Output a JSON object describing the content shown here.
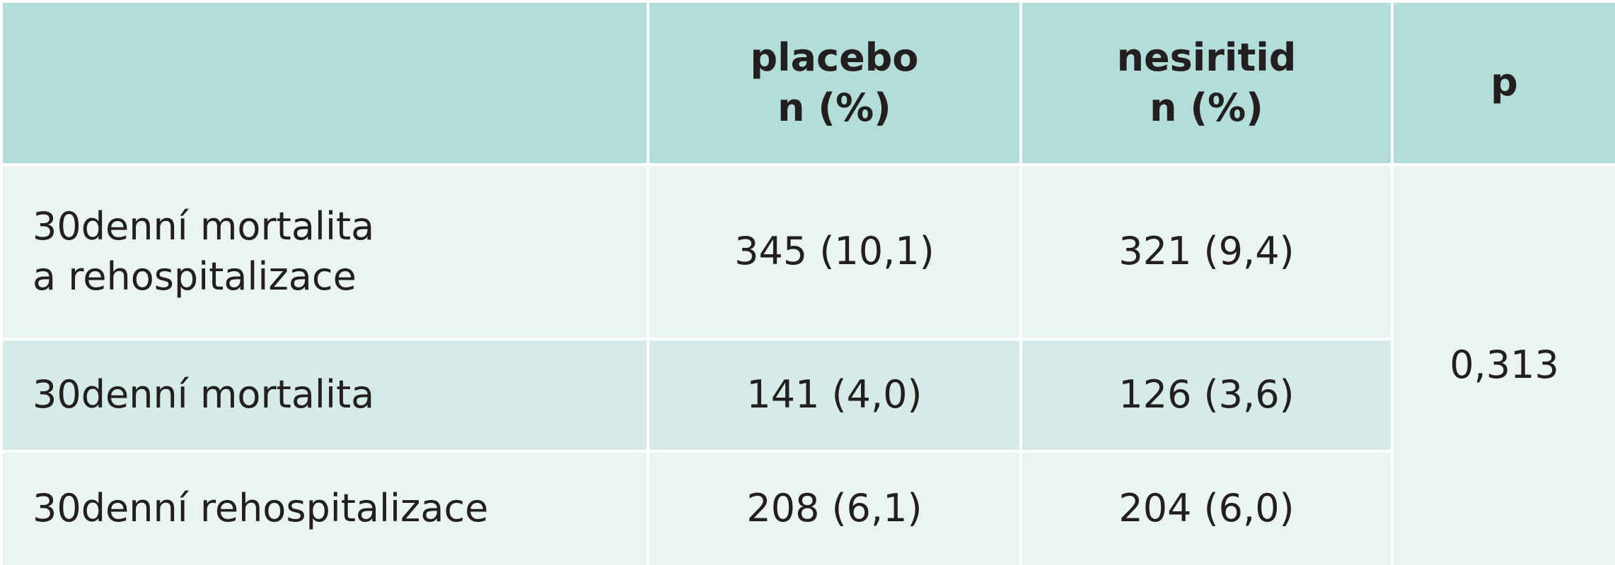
{
  "table": {
    "header": [
      [
        "placebo",
        "n (%)"
      ],
      [
        "nesiritid",
        "n (%)"
      ],
      [
        "p"
      ]
    ],
    "rows": [
      {
        "label": [
          "30denní mortalita",
          "a rehospitalizace"
        ],
        "placebo": "345 (10,1)",
        "nesiritid": "321 (9,4)"
      },
      {
        "label": [
          "30denní mortalita"
        ],
        "placebo": "141 (4,0)",
        "nesiritid": "126 (3,6)"
      },
      {
        "label": [
          "30denní rehospitalizace"
        ],
        "placebo": "208 (6,1)",
        "nesiritid": "204 (6,0)"
      }
    ],
    "p": "0,313"
  }
}
